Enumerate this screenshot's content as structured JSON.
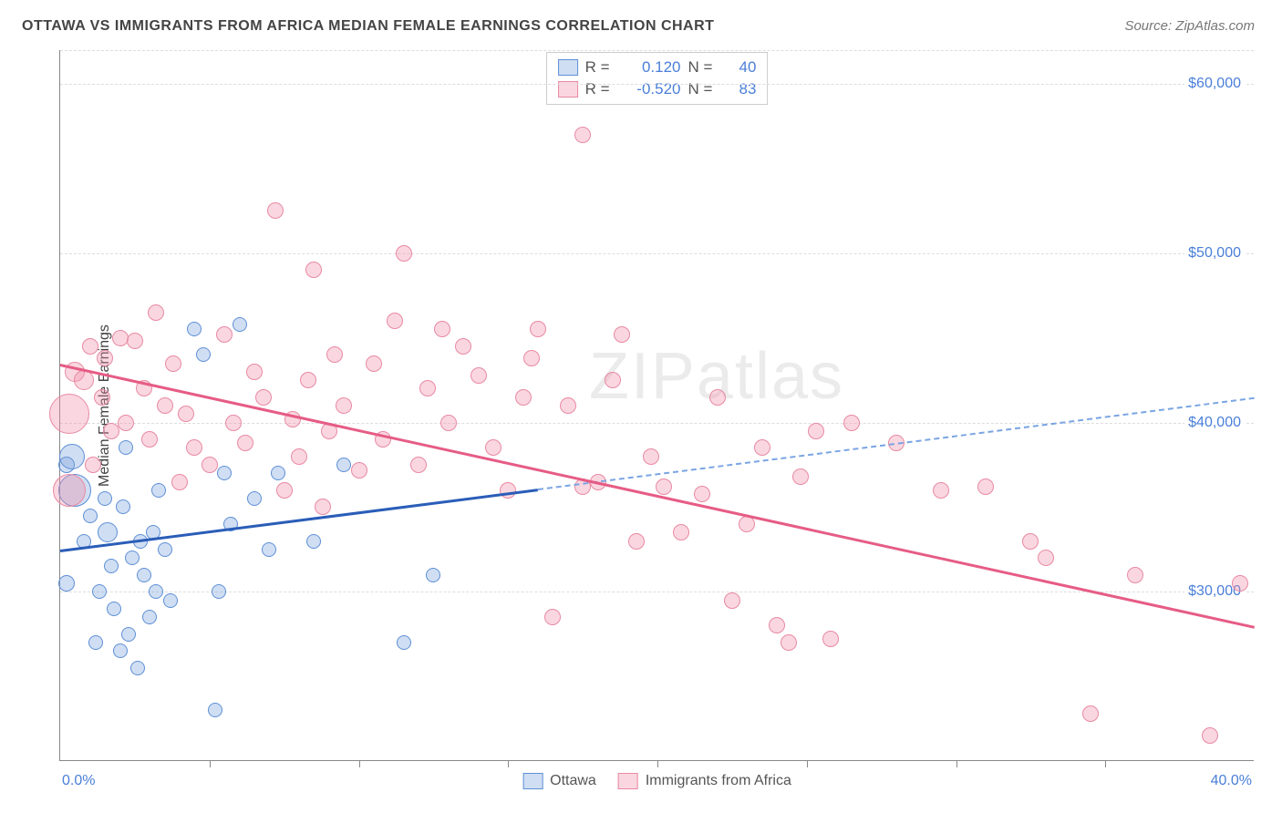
{
  "title": "OTTAWA VS IMMIGRANTS FROM AFRICA MEDIAN FEMALE EARNINGS CORRELATION CHART",
  "source_label": "Source: ZipAtlas.com",
  "watermark": "ZIPatlas",
  "chart": {
    "type": "scatter",
    "yaxis_title": "Median Female Earnings",
    "xlim": [
      0,
      40
    ],
    "ylim": [
      20000,
      62000
    ],
    "xaxis_min_label": "0.0%",
    "xaxis_max_label": "40.0%",
    "yticks": [
      30000,
      40000,
      50000,
      60000
    ],
    "ytick_labels": [
      "$30,000",
      "$40,000",
      "$50,000",
      "$60,000"
    ],
    "xticks": [
      5,
      10,
      15,
      20,
      25,
      30,
      35
    ],
    "grid_color": "#dddddd",
    "axis_color": "#888888",
    "tick_label_color": "#4a7fd8",
    "background_color": "#ffffff"
  },
  "series": [
    {
      "name": "Ottawa",
      "fill": "rgba(120,160,220,0.35)",
      "stroke": "#5d8fd6",
      "line_color_solid": "#2a5db8",
      "line_color_dash": "#7aa5e3",
      "R": "0.120",
      "N": "40",
      "trend": {
        "x1": 0,
        "y1": 32500,
        "x2": 40,
        "y2": 41500,
        "solid_until_x": 16
      },
      "points": [
        {
          "x": 0.2,
          "y": 30500,
          "r": 9
        },
        {
          "x": 0.2,
          "y": 37500,
          "r": 9
        },
        {
          "x": 0.4,
          "y": 38000,
          "r": 14
        },
        {
          "x": 0.5,
          "y": 36000,
          "r": 18
        },
        {
          "x": 0.8,
          "y": 33000,
          "r": 8
        },
        {
          "x": 1.0,
          "y": 34500,
          "r": 8
        },
        {
          "x": 1.2,
          "y": 27000,
          "r": 8
        },
        {
          "x": 1.3,
          "y": 30000,
          "r": 8
        },
        {
          "x": 1.5,
          "y": 35500,
          "r": 8
        },
        {
          "x": 1.6,
          "y": 33500,
          "r": 11
        },
        {
          "x": 1.7,
          "y": 31500,
          "r": 8
        },
        {
          "x": 1.8,
          "y": 29000,
          "r": 8
        },
        {
          "x": 2.0,
          "y": 26500,
          "r": 8
        },
        {
          "x": 2.1,
          "y": 35000,
          "r": 8
        },
        {
          "x": 2.2,
          "y": 38500,
          "r": 8
        },
        {
          "x": 2.3,
          "y": 27500,
          "r": 8
        },
        {
          "x": 2.4,
          "y": 32000,
          "r": 8
        },
        {
          "x": 2.6,
          "y": 25500,
          "r": 8
        },
        {
          "x": 2.7,
          "y": 33000,
          "r": 8
        },
        {
          "x": 2.8,
          "y": 31000,
          "r": 8
        },
        {
          "x": 3.0,
          "y": 28500,
          "r": 8
        },
        {
          "x": 3.1,
          "y": 33500,
          "r": 8
        },
        {
          "x": 3.2,
          "y": 30000,
          "r": 8
        },
        {
          "x": 3.3,
          "y": 36000,
          "r": 8
        },
        {
          "x": 3.5,
          "y": 32500,
          "r": 8
        },
        {
          "x": 3.7,
          "y": 29500,
          "r": 8
        },
        {
          "x": 4.5,
          "y": 45500,
          "r": 8
        },
        {
          "x": 4.8,
          "y": 44000,
          "r": 8
        },
        {
          "x": 5.2,
          "y": 23000,
          "r": 8
        },
        {
          "x": 5.3,
          "y": 30000,
          "r": 8
        },
        {
          "x": 5.5,
          "y": 37000,
          "r": 8
        },
        {
          "x": 5.7,
          "y": 34000,
          "r": 8
        },
        {
          "x": 6.0,
          "y": 45800,
          "r": 8
        },
        {
          "x": 6.5,
          "y": 35500,
          "r": 8
        },
        {
          "x": 7.0,
          "y": 32500,
          "r": 8
        },
        {
          "x": 7.3,
          "y": 37000,
          "r": 8
        },
        {
          "x": 8.5,
          "y": 33000,
          "r": 8
        },
        {
          "x": 9.5,
          "y": 37500,
          "r": 8
        },
        {
          "x": 11.5,
          "y": 27000,
          "r": 8
        },
        {
          "x": 12.5,
          "y": 31000,
          "r": 8
        }
      ]
    },
    {
      "name": "Immigrants from Africa",
      "fill": "rgba(240,140,165,0.35)",
      "stroke": "#e889a3",
      "line_color_solid": "#e65c85",
      "line_color_dash": "#e65c85",
      "R": "-0.520",
      "N": "83",
      "trend": {
        "x1": 0,
        "y1": 43500,
        "x2": 40,
        "y2": 28000,
        "solid_until_x": 40
      },
      "points": [
        {
          "x": 0.3,
          "y": 40500,
          "r": 22
        },
        {
          "x": 0.3,
          "y": 36000,
          "r": 18
        },
        {
          "x": 0.5,
          "y": 43000,
          "r": 11
        },
        {
          "x": 0.8,
          "y": 42500,
          "r": 11
        },
        {
          "x": 1.0,
          "y": 44500,
          "r": 9
        },
        {
          "x": 1.1,
          "y": 37500,
          "r": 9
        },
        {
          "x": 1.4,
          "y": 41500,
          "r": 9
        },
        {
          "x": 1.5,
          "y": 43800,
          "r": 9
        },
        {
          "x": 1.7,
          "y": 39500,
          "r": 9
        },
        {
          "x": 2.0,
          "y": 45000,
          "r": 9
        },
        {
          "x": 2.2,
          "y": 40000,
          "r": 9
        },
        {
          "x": 2.5,
          "y": 44800,
          "r": 9
        },
        {
          "x": 2.8,
          "y": 42000,
          "r": 9
        },
        {
          "x": 3.0,
          "y": 39000,
          "r": 9
        },
        {
          "x": 3.2,
          "y": 46500,
          "r": 9
        },
        {
          "x": 3.5,
          "y": 41000,
          "r": 9
        },
        {
          "x": 3.8,
          "y": 43500,
          "r": 9
        },
        {
          "x": 4.0,
          "y": 36500,
          "r": 9
        },
        {
          "x": 4.2,
          "y": 40500,
          "r": 9
        },
        {
          "x": 4.5,
          "y": 38500,
          "r": 9
        },
        {
          "x": 5.0,
          "y": 37500,
          "r": 9
        },
        {
          "x": 5.5,
          "y": 45200,
          "r": 9
        },
        {
          "x": 5.8,
          "y": 40000,
          "r": 9
        },
        {
          "x": 6.2,
          "y": 38800,
          "r": 9
        },
        {
          "x": 6.5,
          "y": 43000,
          "r": 9
        },
        {
          "x": 6.8,
          "y": 41500,
          "r": 9
        },
        {
          "x": 7.2,
          "y": 52500,
          "r": 9
        },
        {
          "x": 7.5,
          "y": 36000,
          "r": 9
        },
        {
          "x": 7.8,
          "y": 40200,
          "r": 9
        },
        {
          "x": 8.0,
          "y": 38000,
          "r": 9
        },
        {
          "x": 8.3,
          "y": 42500,
          "r": 9
        },
        {
          "x": 8.5,
          "y": 49000,
          "r": 9
        },
        {
          "x": 8.8,
          "y": 35000,
          "r": 9
        },
        {
          "x": 9.0,
          "y": 39500,
          "r": 9
        },
        {
          "x": 9.2,
          "y": 44000,
          "r": 9
        },
        {
          "x": 9.5,
          "y": 41000,
          "r": 9
        },
        {
          "x": 10.0,
          "y": 37200,
          "r": 9
        },
        {
          "x": 10.5,
          "y": 43500,
          "r": 9
        },
        {
          "x": 10.8,
          "y": 39000,
          "r": 9
        },
        {
          "x": 11.2,
          "y": 46000,
          "r": 9
        },
        {
          "x": 11.5,
          "y": 50000,
          "r": 9
        },
        {
          "x": 12.0,
          "y": 37500,
          "r": 9
        },
        {
          "x": 12.3,
          "y": 42000,
          "r": 9
        },
        {
          "x": 12.8,
          "y": 45500,
          "r": 9
        },
        {
          "x": 13.0,
          "y": 40000,
          "r": 9
        },
        {
          "x": 13.5,
          "y": 44500,
          "r": 9
        },
        {
          "x": 14.0,
          "y": 42800,
          "r": 9
        },
        {
          "x": 14.5,
          "y": 38500,
          "r": 9
        },
        {
          "x": 15.0,
          "y": 36000,
          "r": 9
        },
        {
          "x": 15.5,
          "y": 41500,
          "r": 9
        },
        {
          "x": 15.8,
          "y": 43800,
          "r": 9
        },
        {
          "x": 16.0,
          "y": 45500,
          "r": 9
        },
        {
          "x": 16.5,
          "y": 28500,
          "r": 9
        },
        {
          "x": 17.0,
          "y": 41000,
          "r": 9
        },
        {
          "x": 17.5,
          "y": 36200,
          "r": 9
        },
        {
          "x": 17.5,
          "y": 57000,
          "r": 9
        },
        {
          "x": 18.0,
          "y": 36500,
          "r": 9
        },
        {
          "x": 18.5,
          "y": 42500,
          "r": 9
        },
        {
          "x": 18.8,
          "y": 45200,
          "r": 9
        },
        {
          "x": 19.3,
          "y": 33000,
          "r": 9
        },
        {
          "x": 19.8,
          "y": 38000,
          "r": 9
        },
        {
          "x": 20.2,
          "y": 36200,
          "r": 9
        },
        {
          "x": 20.8,
          "y": 33500,
          "r": 9
        },
        {
          "x": 21.5,
          "y": 35800,
          "r": 9
        },
        {
          "x": 22.0,
          "y": 41500,
          "r": 9
        },
        {
          "x": 22.5,
          "y": 29500,
          "r": 9
        },
        {
          "x": 23.0,
          "y": 34000,
          "r": 9
        },
        {
          "x": 23.5,
          "y": 38500,
          "r": 9
        },
        {
          "x": 24.0,
          "y": 28000,
          "r": 9
        },
        {
          "x": 24.4,
          "y": 27000,
          "r": 9
        },
        {
          "x": 24.8,
          "y": 36800,
          "r": 9
        },
        {
          "x": 25.3,
          "y": 39500,
          "r": 9
        },
        {
          "x": 25.8,
          "y": 27200,
          "r": 9
        },
        {
          "x": 26.5,
          "y": 40000,
          "r": 9
        },
        {
          "x": 28.0,
          "y": 38800,
          "r": 9
        },
        {
          "x": 29.5,
          "y": 36000,
          "r": 9
        },
        {
          "x": 31.0,
          "y": 36200,
          "r": 9
        },
        {
          "x": 32.5,
          "y": 33000,
          "r": 9
        },
        {
          "x": 33.0,
          "y": 32000,
          "r": 9
        },
        {
          "x": 34.5,
          "y": 22800,
          "r": 9
        },
        {
          "x": 36.0,
          "y": 31000,
          "r": 9
        },
        {
          "x": 38.5,
          "y": 21500,
          "r": 9
        },
        {
          "x": 39.5,
          "y": 30500,
          "r": 9
        }
      ]
    }
  ],
  "stats_box": {
    "R_label": "R =",
    "N_label": "N ="
  },
  "legend": {
    "items": [
      "Ottawa",
      "Immigrants from Africa"
    ]
  }
}
